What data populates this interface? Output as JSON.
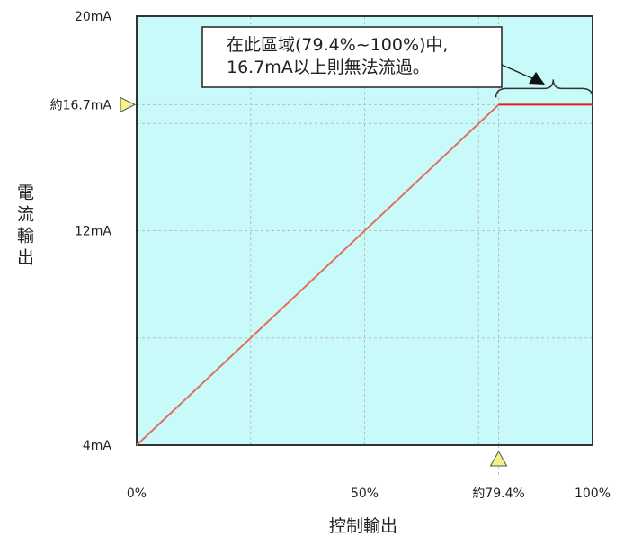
{
  "chart_data": {
    "type": "line",
    "xlabel": "控制輸出",
    "ylabel": "電流輸出",
    "xlim": [
      0,
      100
    ],
    "ylim": [
      4,
      20
    ],
    "x_ticks": [
      {
        "v": 0,
        "label": "0%"
      },
      {
        "v": 50,
        "label": "50%"
      },
      {
        "v": 79.4,
        "label": "約79.4%"
      },
      {
        "v": 100,
        "label": "100%"
      }
    ],
    "y_ticks": [
      {
        "v": 4,
        "label": "4mA"
      },
      {
        "v": 12,
        "label": "12mA"
      },
      {
        "v": 16.7,
        "label": "約16.7mA"
      },
      {
        "v": 20,
        "label": "20mA"
      }
    ],
    "x_grid": [
      25,
      50,
      75,
      79.4
    ],
    "y_grid": [
      8,
      12,
      16,
      16.7
    ],
    "grid": true,
    "series": [
      {
        "x": [
          0,
          79.4
        ],
        "y": [
          4,
          16.7
        ],
        "color": "#e07060"
      },
      {
        "x": [
          79.4,
          100
        ],
        "y": [
          16.7,
          16.7
        ],
        "color": "#e02020"
      }
    ],
    "annotation": {
      "lines": [
        "在此區域(79.4%~100%)中,",
        "16.7mA以上則無法流過。"
      ],
      "range": [
        79.4,
        100
      ]
    },
    "colors": {
      "plot_bg": "#c8fafa",
      "marker": "#f5f08a"
    }
  }
}
